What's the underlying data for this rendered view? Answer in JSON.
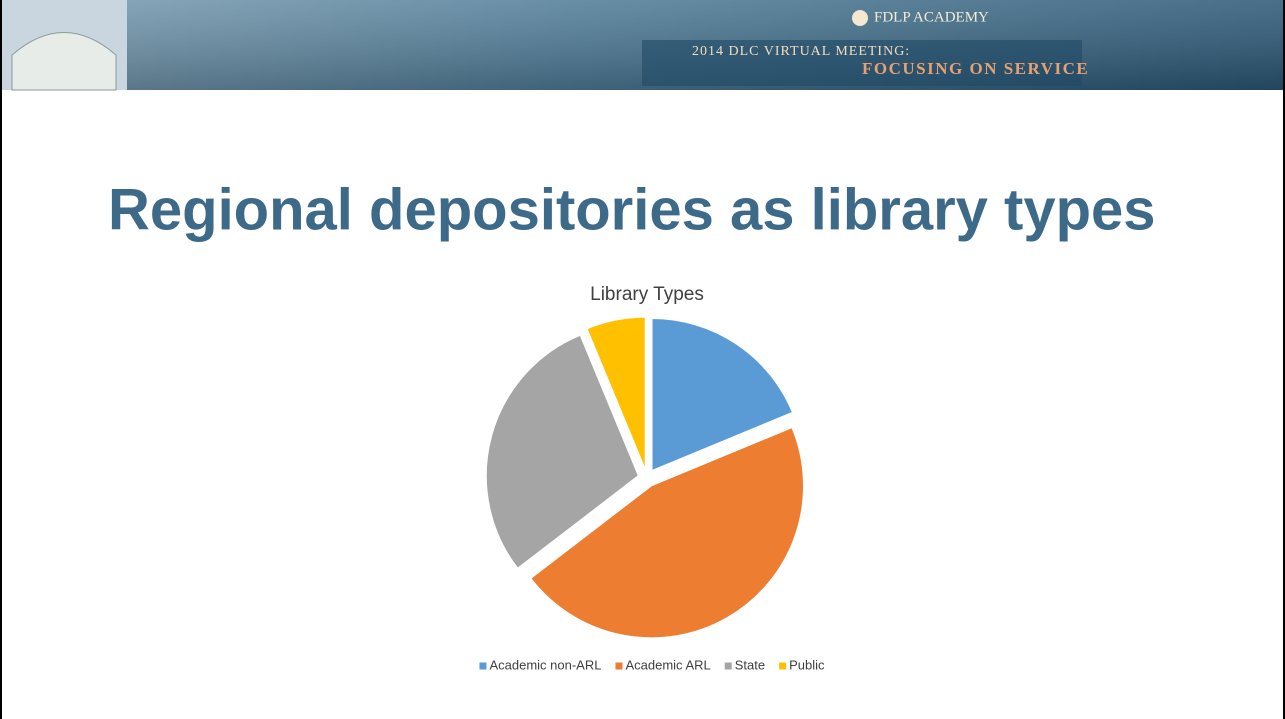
{
  "header": {
    "brand": "FDLP ACADEMY",
    "line1": "2014 DLC Virtual Meeting:",
    "line2": "Focusing on Service"
  },
  "title": "Regional depositories as library types",
  "chart_data": {
    "type": "pie",
    "title": "Library Types",
    "categories": [
      "Academic non-ARL",
      "Academic ARL",
      "State",
      "Public"
    ],
    "values": [
      9,
      22,
      14,
      3
    ],
    "colors": [
      "#5b9bd5",
      "#ed7d31",
      "#a5a5a5",
      "#ffc000"
    ],
    "legend": "bottom"
  }
}
